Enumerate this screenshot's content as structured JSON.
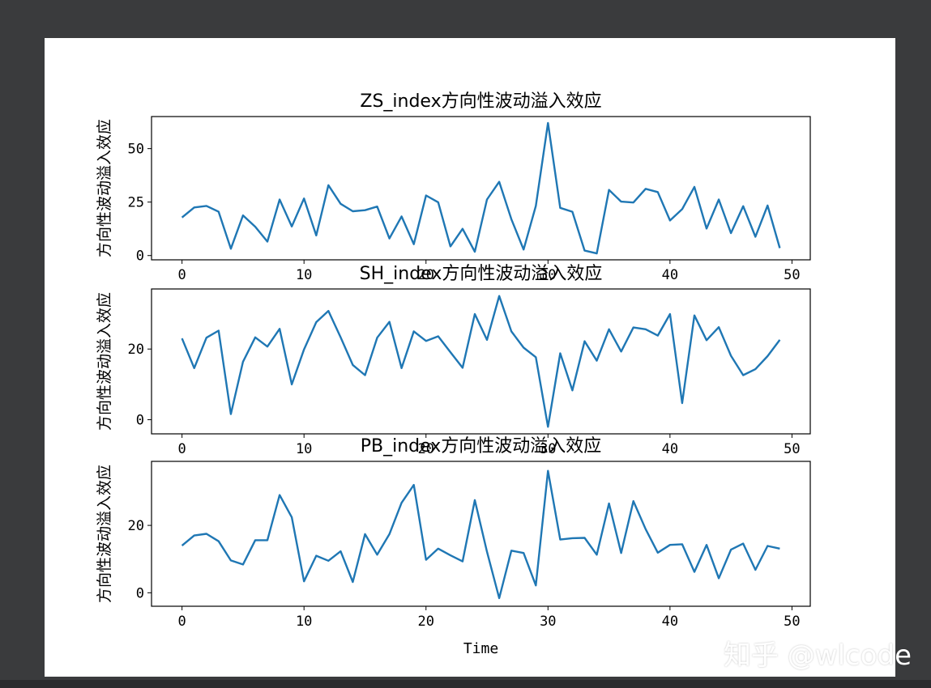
{
  "watermark": {
    "text": "知乎 @wlcode"
  },
  "style": {
    "line_color": "#1f77b4",
    "axes_color": "#000000"
  },
  "chart_data": [
    {
      "type": "line",
      "title": "ZS_index方向性波动溢入效应",
      "xlabel": "",
      "ylabel": "方向性波动溢入效应",
      "x": [
        0,
        1,
        2,
        3,
        4,
        5,
        6,
        7,
        8,
        9,
        10,
        11,
        12,
        13,
        14,
        15,
        16,
        17,
        18,
        19,
        20,
        21,
        22,
        23,
        24,
        25,
        26,
        27,
        28,
        29,
        30,
        31,
        32,
        33,
        34,
        35,
        36,
        37,
        38,
        39,
        40,
        41,
        42,
        43,
        44,
        45,
        46,
        47,
        48,
        49
      ],
      "series": [
        {
          "values": [
            17.8,
            22.5,
            23.2,
            20.5,
            3.2,
            18.8,
            13.5,
            6.5,
            26.2,
            13.6,
            26.7,
            9.4,
            32.9,
            24.2,
            20.7,
            21.2,
            22.9,
            8.0,
            18.3,
            5.3,
            28.1,
            24.9,
            4.3,
            12.5,
            1.8,
            26.2,
            34.5,
            17.0,
            2.8,
            23.2,
            62.0,
            22.3,
            20.5,
            2.3,
            1.0,
            30.7,
            25.2,
            24.8,
            31.2,
            29.7,
            16.4,
            21.7,
            32.1,
            12.6,
            26.2,
            10.5,
            23.1,
            8.8,
            23.4,
            3.5
          ]
        }
      ],
      "xlim": [
        -2.5,
        51.5
      ],
      "ylim": [
        -2,
        65
      ],
      "xticks": [
        0,
        10,
        20,
        30,
        40,
        50
      ],
      "yticks": [
        0,
        25,
        50
      ]
    },
    {
      "type": "line",
      "title": "SH_index方向性波动溢入效应",
      "xlabel": "",
      "ylabel": "方向性波动溢入效应",
      "x": [
        0,
        1,
        2,
        3,
        4,
        5,
        6,
        7,
        8,
        9,
        10,
        11,
        12,
        13,
        14,
        15,
        16,
        17,
        18,
        19,
        20,
        21,
        22,
        23,
        24,
        25,
        26,
        27,
        28,
        29,
        30,
        31,
        32,
        33,
        34,
        35,
        36,
        37,
        38,
        39,
        40,
        41,
        42,
        43,
        44,
        45,
        46,
        47,
        48,
        49
      ],
      "series": [
        {
          "values": [
            23.0,
            14.6,
            23.2,
            25.2,
            1.6,
            16.4,
            23.3,
            20.7,
            25.7,
            10.0,
            19.9,
            27.6,
            30.8,
            23.3,
            15.5,
            12.6,
            23.2,
            27.7,
            14.6,
            25.0,
            22.3,
            23.6,
            19.1,
            14.7,
            29.9,
            22.6,
            35.0,
            25.0,
            20.4,
            17.7,
            -2.0,
            18.8,
            8.3,
            22.2,
            16.7,
            25.6,
            19.3,
            26.1,
            25.6,
            23.8,
            29.9,
            4.7,
            29.5,
            22.5,
            26.2,
            18.1,
            12.6,
            14.3,
            18.0,
            22.6
          ]
        }
      ],
      "xlim": [
        -2.5,
        51.5
      ],
      "ylim": [
        -4,
        37
      ],
      "xticks": [
        0,
        10,
        20,
        30,
        40,
        50
      ],
      "yticks": [
        0,
        20
      ]
    },
    {
      "type": "line",
      "title": "PB_index方向性波动溢入效应",
      "xlabel": "Time",
      "ylabel": "方向性波动溢入效应",
      "x": [
        0,
        1,
        2,
        3,
        4,
        5,
        6,
        7,
        8,
        9,
        10,
        11,
        12,
        13,
        14,
        15,
        16,
        17,
        18,
        19,
        20,
        21,
        22,
        23,
        24,
        25,
        26,
        27,
        28,
        29,
        30,
        31,
        32,
        33,
        34,
        35,
        36,
        37,
        38,
        39,
        40,
        41,
        42,
        43,
        44,
        45,
        46,
        47,
        48,
        49
      ],
      "series": [
        {
          "values": [
            14.0,
            17.0,
            17.5,
            15.3,
            9.6,
            8.4,
            15.6,
            15.6,
            29.0,
            22.4,
            3.4,
            11.0,
            9.5,
            12.3,
            3.2,
            17.4,
            11.3,
            17.4,
            26.7,
            32.0,
            9.8,
            13.1,
            11.1,
            9.3,
            27.5,
            12.2,
            -1.6,
            12.5,
            11.8,
            2.2,
            36.2,
            15.8,
            16.2,
            16.3,
            11.3,
            26.5,
            11.8,
            27.2,
            18.9,
            11.9,
            14.2,
            14.4,
            6.2,
            14.2,
            4.3,
            12.8,
            14.6,
            6.8,
            13.9,
            13.1
          ]
        }
      ],
      "xlim": [
        -2.5,
        51.5
      ],
      "ylim": [
        -4,
        39
      ],
      "xticks": [
        0,
        10,
        20,
        30,
        40,
        50
      ],
      "yticks": [
        0,
        20
      ]
    }
  ]
}
